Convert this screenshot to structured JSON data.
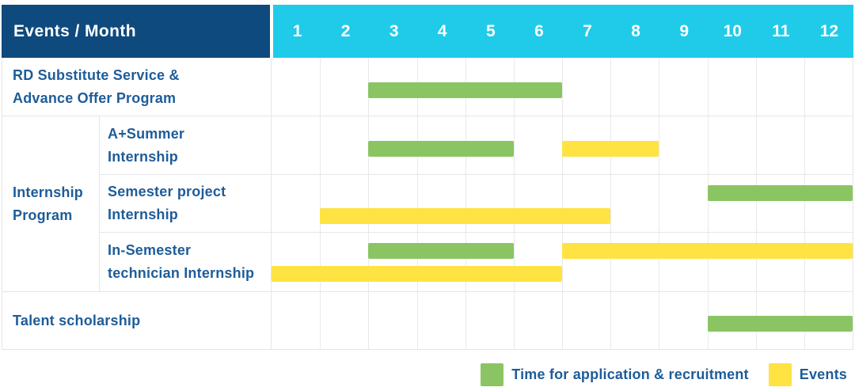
{
  "colors": {
    "application": "#8BC563",
    "event": "#FEE342",
    "header_bg": "#0E4A7D",
    "month_strip_bg": "#20CBE9",
    "header_text": "#FFFFFF",
    "label_text": "#1E5C99",
    "gridline": "#E6E6EA"
  },
  "chart_data": {
    "type": "table",
    "subtype": "gantt",
    "title": "Events / Month",
    "xlabel": "Month",
    "x_categories": [
      "1",
      "2",
      "3",
      "4",
      "5",
      "6",
      "7",
      "8",
      "9",
      "10",
      "11",
      "12"
    ],
    "x_range": [
      1,
      12
    ],
    "grid": true,
    "legend_position": "bottom-right",
    "legend": [
      {
        "key": "application",
        "label": "Time for application & recruitment",
        "color": "#8BC563"
      },
      {
        "key": "event",
        "label": "Events",
        "color": "#FEE342"
      }
    ],
    "groups": [
      {
        "label": "Internship Program",
        "label_lines": [
          "Internship",
          "Program"
        ],
        "member_rows": [
          "A+Summer Internship",
          "Semester project Internship",
          "In-Semester technician Internship"
        ]
      }
    ],
    "rows": [
      {
        "label": "RD Substitute Service & Advance Offer Program",
        "label_lines": [
          "RD Substitute Service &",
          "Advance Offer Program"
        ],
        "group": null,
        "lines": [
          [
            {
              "key": "application",
              "start_month": 3,
              "end_month": 6
            }
          ]
        ]
      },
      {
        "label": "A+Summer Internship",
        "label_lines": [
          "A+Summer",
          "Internship"
        ],
        "group": "Internship Program",
        "lines": [
          [
            {
              "key": "application",
              "start_month": 3,
              "end_month": 5
            },
            {
              "key": "event",
              "start_month": 7,
              "end_month": 8
            }
          ]
        ]
      },
      {
        "label": "Semester project Internship",
        "label_lines": [
          "Semester project",
          "Internship"
        ],
        "group": "Internship Program",
        "lines": [
          [
            {
              "key": "application",
              "start_month": 10,
              "end_month": 12
            }
          ],
          [
            {
              "key": "event",
              "start_month": 2,
              "end_month": 7
            }
          ]
        ]
      },
      {
        "label": "In-Semester technician Internship",
        "label_lines": [
          "In-Semester",
          "technician Internship"
        ],
        "group": "Internship Program",
        "lines": [
          [
            {
              "key": "application",
              "start_month": 3,
              "end_month": 5
            },
            {
              "key": "event",
              "start_month": 7,
              "end_month": 12
            }
          ],
          [
            {
              "key": "event",
              "start_month": 1,
              "end_month": 6
            }
          ]
        ]
      },
      {
        "label": "Talent scholarship",
        "label_lines": [
          "Talent scholarship"
        ],
        "group": null,
        "lines": [
          [
            {
              "key": "application",
              "start_month": 10,
              "end_month": 12
            }
          ]
        ]
      }
    ]
  }
}
